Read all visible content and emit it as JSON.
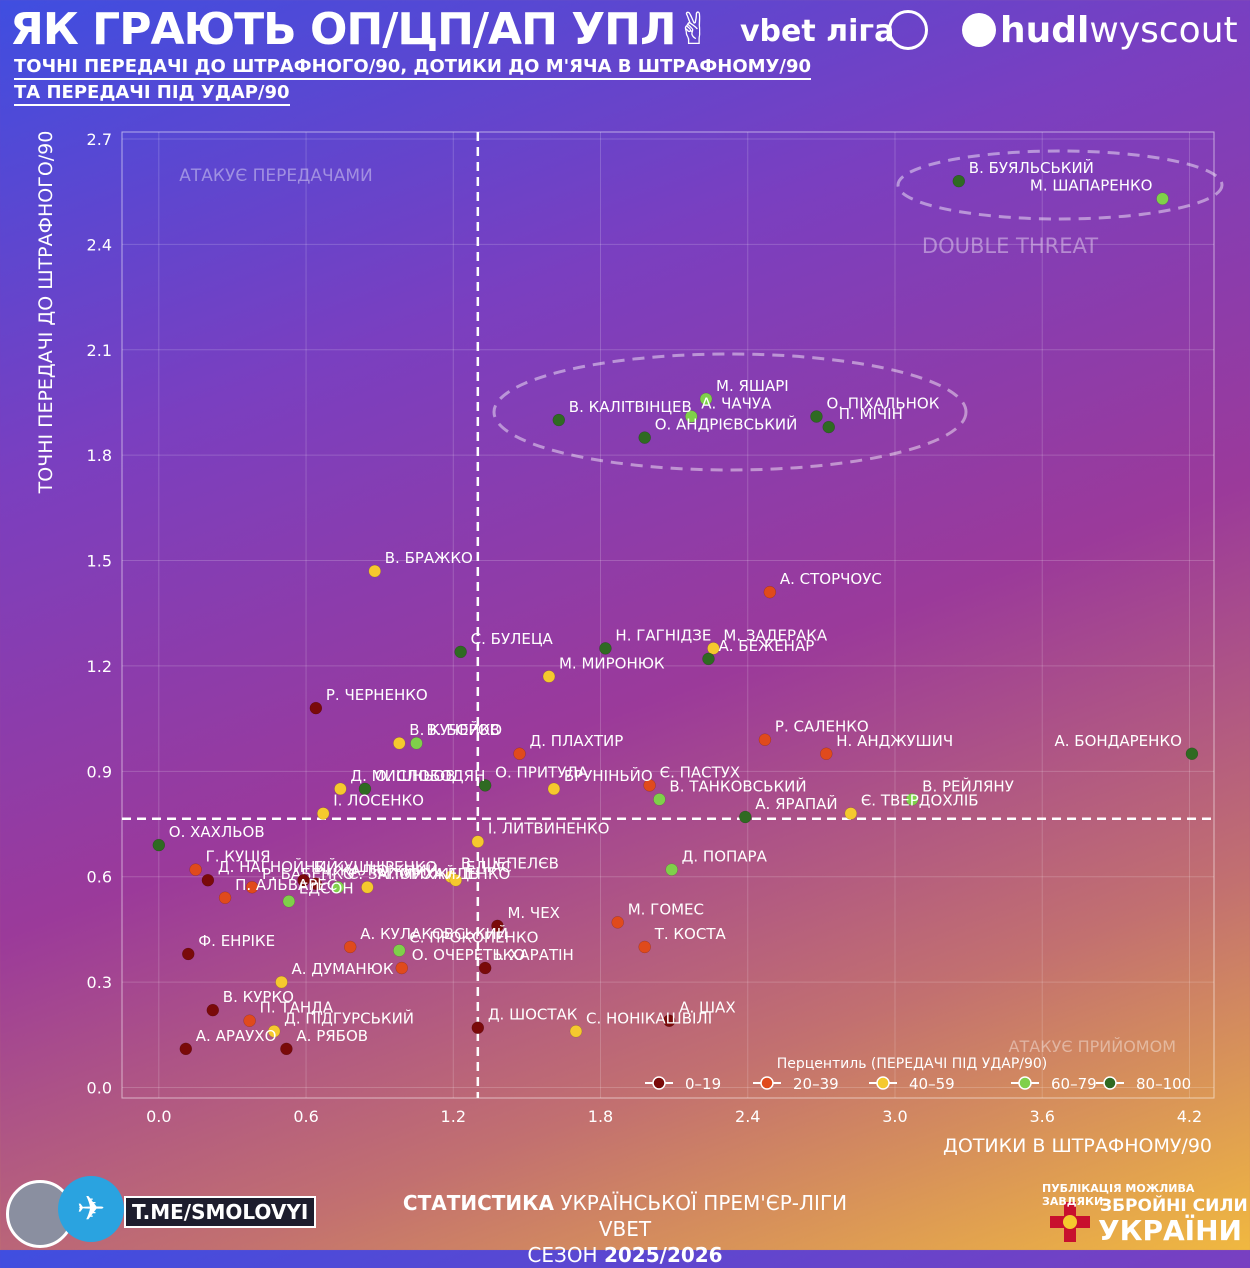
{
  "header": {
    "title": "ЯК ГРАЮТЬ ОП/ЦП/АП УПЛ",
    "hand": "✌",
    "league": "vbet ліга",
    "brand_bold": "hudl",
    "brand_rest": "wyscout",
    "subtitle_1": "ТОЧНІ ПЕРЕДАЧІ ДО ШТРАФНОГО/90, ДОТИКИ ДО М'ЯЧА В ШТРАФНОМУ/90",
    "subtitle_2": "ТА ПЕРЕДАЧІ ПІД УДАР/90"
  },
  "footer": {
    "line1_bold": "СТАТИСТИКА",
    "line1_rest": "УКРАЇНСЬКОЇ ПРЕМ'ЄР-ЛІГИ VBET",
    "line2_a": "СЕЗОН",
    "line2_b": "2025/2026",
    "telegram": "T.ME/SMOLOVYI",
    "sponsor_1": "ПУБЛІКАЦІЯ МОЖЛИВА ЗАВДЯКИ:",
    "sponsor_2": "ЗБРОЙНІ СИЛИ",
    "sponsor_3": "УКРАЇНИ"
  },
  "colors": {
    "p0_19": "#7a0a0a",
    "p20_39": "#e04a1c",
    "p40_59": "#f5c92e",
    "p60_79": "#7fd04a",
    "p80_100": "#2f6a22"
  },
  "chart_data": {
    "type": "scatter",
    "xlabel": "ДОТИКИ В ШТРАФНОМУ/90",
    "ylabel": "ТОЧНІ ПЕРЕДАЧІ ДО ШТРАФНОГО/90",
    "xlim": [
      -0.15,
      4.3
    ],
    "ylim": [
      -0.03,
      2.72
    ],
    "xticks": [
      "0.0",
      "0.6",
      "1.2",
      "1.8",
      "2.4",
      "3.0",
      "3.6",
      "4.2"
    ],
    "yticks": [
      "0.0",
      "0.3",
      "0.6",
      "0.9",
      "1.2",
      "1.5",
      "1.8",
      "2.1",
      "2.4",
      "2.7"
    ],
    "ref_x": 1.3,
    "ref_y": 0.765,
    "quadrants": {
      "top_left": "АТАКУЄ ПЕРЕДАЧАМИ",
      "top_right": "DOUBLE THREAT",
      "bottom_right": "АТАКУЄ ПРИЙОМОМ"
    },
    "legend_title": "Перцентиль (ПЕРЕДАЧІ ПІД УДАР/90)",
    "legend": [
      {
        "label": "0–19",
        "color": "#7a0a0a"
      },
      {
        "label": "20–39",
        "color": "#e04a1c"
      },
      {
        "label": "40–59",
        "color": "#f5c92e"
      },
      {
        "label": "60–79",
        "color": "#7fd04a"
      },
      {
        "label": "80–100",
        "color": "#2f6a22"
      }
    ],
    "points": [
      {
        "name": "В. БУЯЛЬСЬКИЙ",
        "x": 3.26,
        "y": 2.58,
        "c": 4
      },
      {
        "name": "М. ШАПАРЕНКО",
        "x": 4.09,
        "y": 2.53,
        "c": 3
      },
      {
        "name": "М. ЯШАРІ",
        "x": 2.23,
        "y": 1.96,
        "c": 3
      },
      {
        "name": "А. ЧАЧУА",
        "x": 2.17,
        "y": 1.91,
        "c": 3
      },
      {
        "name": "О. ПІХАЛЬНОК",
        "x": 2.68,
        "y": 1.91,
        "c": 4
      },
      {
        "name": "П. МІЧІН",
        "x": 2.73,
        "y": 1.88,
        "c": 4
      },
      {
        "name": "В. КАЛІТВІНЦЕВ",
        "x": 1.63,
        "y": 1.9,
        "c": 4
      },
      {
        "name": "О. АНДРІЄВСЬКИЙ",
        "x": 1.98,
        "y": 1.85,
        "c": 4
      },
      {
        "name": "В. БРАЖКО",
        "x": 0.88,
        "y": 1.47,
        "c": 2
      },
      {
        "name": "А. СТОРЧОУС",
        "x": 2.49,
        "y": 1.41,
        "c": 1
      },
      {
        "name": "С. БУЛЕЦА",
        "x": 1.23,
        "y": 1.24,
        "c": 4
      },
      {
        "name": "Н. ГАГНІДЗЕ",
        "x": 1.82,
        "y": 1.25,
        "c": 4
      },
      {
        "name": "М. ЗАДЕРАКА",
        "x": 2.26,
        "y": 1.25,
        "c": 2
      },
      {
        "name": "А. БЕЖЕНАР",
        "x": 2.24,
        "y": 1.22,
        "c": 4
      },
      {
        "name": "М. МИРОНЮК",
        "x": 1.59,
        "y": 1.17,
        "c": 2
      },
      {
        "name": "Р. ЧЕРНЕНКО",
        "x": 0.64,
        "y": 1.08,
        "c": 0
      },
      {
        "name": "В. КУЧЕРОВ",
        "x": 0.98,
        "y": 0.98,
        "c": 2
      },
      {
        "name": "В. БОЙКО",
        "x": 1.05,
        "y": 0.98,
        "c": 3
      },
      {
        "name": "Д. ПЛАХТИР",
        "x": 1.47,
        "y": 0.95,
        "c": 1
      },
      {
        "name": "Р. САЛЕНКО",
        "x": 2.47,
        "y": 0.99,
        "c": 1
      },
      {
        "name": "Н. АНДЖУШИЧ",
        "x": 2.72,
        "y": 0.95,
        "c": 1
      },
      {
        "name": "А. БОНДАРЕНКО",
        "x": 4.21,
        "y": 0.95,
        "c": 4
      },
      {
        "name": "О. ПРИТУЛА",
        "x": 1.33,
        "y": 0.86,
        "c": 4
      },
      {
        "name": "Є. ПАСТУХ",
        "x": 2.0,
        "y": 0.86,
        "c": 1
      },
      {
        "name": "Д. МИШНЬОВ",
        "x": 0.74,
        "y": 0.85,
        "c": 2
      },
      {
        "name": "О. СЛОБОДЯН",
        "x": 0.84,
        "y": 0.85,
        "c": 4
      },
      {
        "name": "БРУНІНЬЙО",
        "x": 1.61,
        "y": 0.85,
        "c": 2
      },
      {
        "name": "В. ТАНКОВСЬКИЙ",
        "x": 2.04,
        "y": 0.82,
        "c": 3
      },
      {
        "name": "В. РЕЙЛЯНУ",
        "x": 3.07,
        "y": 0.82,
        "c": 3
      },
      {
        "name": "Є. ТВЕРДОХЛІБ",
        "x": 2.82,
        "y": 0.78,
        "c": 2
      },
      {
        "name": "А. ЯРАПАЙ",
        "x": 2.39,
        "y": 0.77,
        "c": 4
      },
      {
        "name": "І. ЛОСЕНКО",
        "x": 0.67,
        "y": 0.78,
        "c": 2
      },
      {
        "name": "О. ХАХЛЬОВ",
        "x": 0.0,
        "y": 0.69,
        "c": 4
      },
      {
        "name": "І. ЛИТВИНЕНКО",
        "x": 1.3,
        "y": 0.7,
        "c": 2
      },
      {
        "name": "Д. ПОПАРА",
        "x": 2.09,
        "y": 0.62,
        "c": 3
      },
      {
        "name": "Г. КУЦІЯ",
        "x": 0.15,
        "y": 0.62,
        "c": 1
      },
      {
        "name": "Д. НАГНОЙНИЙ",
        "x": 0.2,
        "y": 0.59,
        "c": 0
      },
      {
        "name": "Р. БАБЕНКО",
        "x": 0.38,
        "y": 0.57,
        "c": 1
      },
      {
        "name": "Б. КУШНІРЕНКО",
        "x": 0.59,
        "y": 0.59,
        "c": 0
      },
      {
        "name": "І. КАЛЮЖНИЙ",
        "x": 0.64,
        "y": 0.58,
        "c": 0
      },
      {
        "name": "В. ШЕПЕЛЄВ",
        "x": 1.19,
        "y": 0.6,
        "c": 2
      },
      {
        "name": "Є. ЗАПОРОЖЕЦЬ",
        "x": 0.73,
        "y": 0.57,
        "c": 3
      },
      {
        "name": "ЕЛІАС",
        "x": 1.21,
        "y": 0.59,
        "c": 2
      },
      {
        "name": "М. МИХАЙЛЕНКО",
        "x": 0.85,
        "y": 0.57,
        "c": 2
      },
      {
        "name": "П. АЛЬВАРЕС",
        "x": 0.27,
        "y": 0.54,
        "c": 1
      },
      {
        "name": "ЕДСОН",
        "x": 0.53,
        "y": 0.53,
        "c": 3
      },
      {
        "name": "М. ЧЕХ",
        "x": 1.38,
        "y": 0.46,
        "c": 0
      },
      {
        "name": "М. ГОМЕС",
        "x": 1.87,
        "y": 0.47,
        "c": 1
      },
      {
        "name": "А. КУЛАКОВСЬКИЙ",
        "x": 0.78,
        "y": 0.4,
        "c": 1
      },
      {
        "name": "Т. КОСТА",
        "x": 1.98,
        "y": 0.4,
        "c": 1
      },
      {
        "name": "Є. ПРОКОПЕНКО",
        "x": 0.98,
        "y": 0.39,
        "c": 3
      },
      {
        "name": "Ф. ЕНРІКЕ",
        "x": 0.12,
        "y": 0.38,
        "c": 0
      },
      {
        "name": "О. ОЧЕРЕТЬКО",
        "x": 0.99,
        "y": 0.34,
        "c": 1
      },
      {
        "name": "І. ХАРАТІН",
        "x": 1.33,
        "y": 0.34,
        "c": 0
      },
      {
        "name": "А. ДУМАНЮК",
        "x": 0.5,
        "y": 0.3,
        "c": 2
      },
      {
        "name": "В. КУРКО",
        "x": 0.22,
        "y": 0.22,
        "c": 0
      },
      {
        "name": "П. ТАНДА",
        "x": 0.37,
        "y": 0.19,
        "c": 1
      },
      {
        "name": "А. ШАХ",
        "x": 2.08,
        "y": 0.19,
        "c": 0
      },
      {
        "name": "Д. ШОСТАК",
        "x": 1.3,
        "y": 0.17,
        "c": 0
      },
      {
        "name": "С. НОНІКАШВІЛІ",
        "x": 1.7,
        "y": 0.16,
        "c": 2
      },
      {
        "name": "Д. ПІДГУРСЬКИЙ",
        "x": 0.47,
        "y": 0.16,
        "c": 2
      },
      {
        "name": "А. АРАУХО",
        "x": 0.11,
        "y": 0.11,
        "c": 0
      },
      {
        "name": "А. РЯБОВ",
        "x": 0.52,
        "y": 0.11,
        "c": 0
      }
    ]
  }
}
